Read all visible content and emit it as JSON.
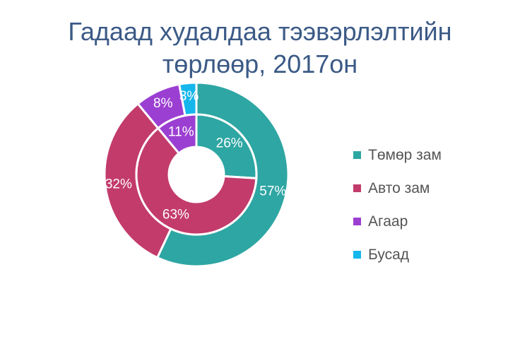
{
  "chart_data": {
    "type": "donut",
    "title": "Гадаад худалдаа тээвэрлэлтийн төрлөөр, 2017он",
    "title_lines": [
      "Гадаад худалдаа тээвэрлэлтийн",
      "төрлөөр, 2017он"
    ],
    "categories": [
      "Төмөр зам",
      "Авто зам",
      "Агаар",
      "Бусад"
    ],
    "colors": [
      "#2ea6a3",
      "#c23b6b",
      "#9b3fd2",
      "#15b6ec"
    ],
    "series": [
      {
        "ring": "outer",
        "values": [
          57,
          32,
          8,
          3
        ],
        "labels": [
          "57%",
          "32%",
          "8%",
          "3%"
        ]
      },
      {
        "ring": "inner",
        "values": [
          26,
          63,
          11,
          0
        ],
        "labels": [
          "26%",
          "63%",
          "11%",
          ""
        ]
      }
    ],
    "legend_position": "right"
  }
}
